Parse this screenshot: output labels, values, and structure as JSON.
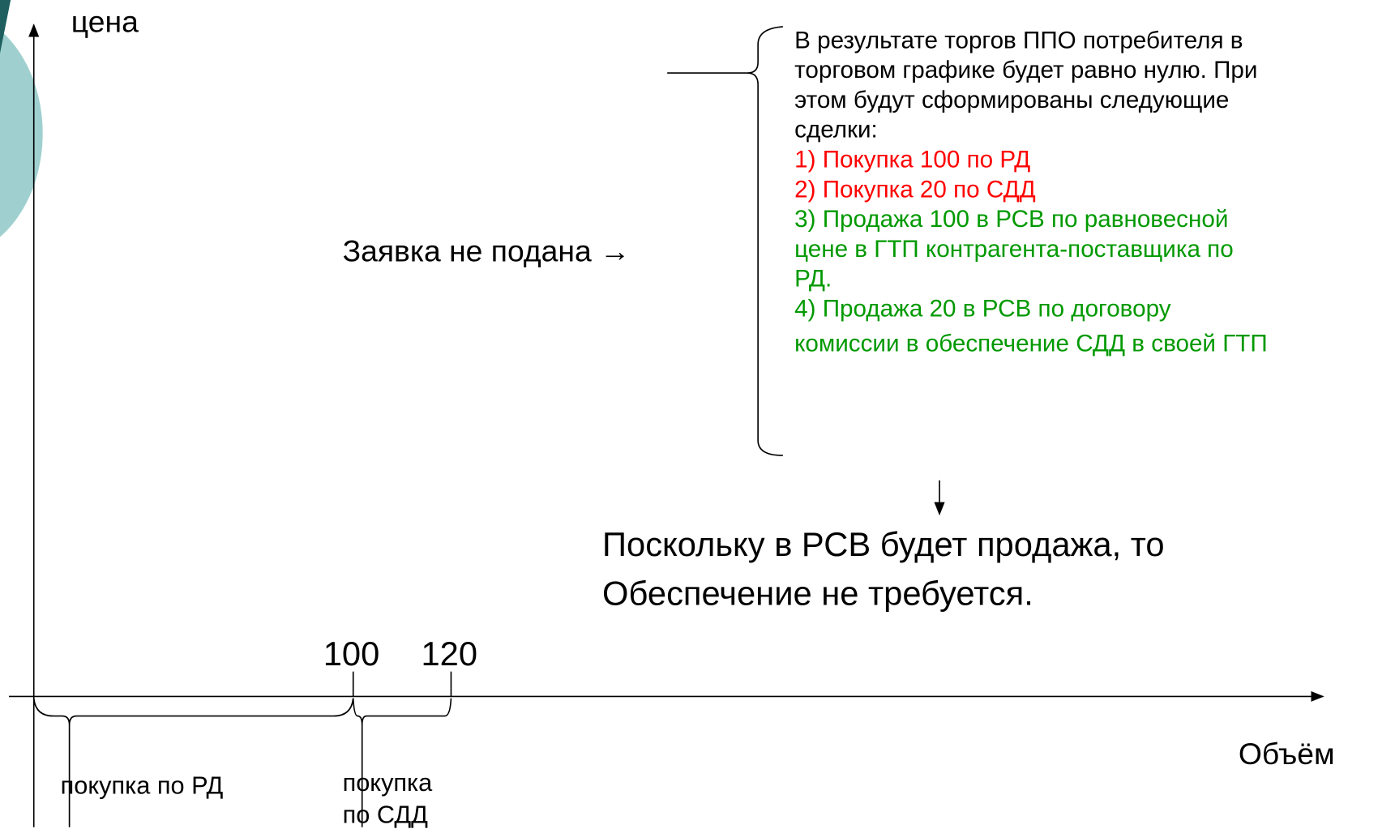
{
  "axes": {
    "y_label": "цена",
    "x_label": "Объём",
    "x_marks": [
      "100",
      "120"
    ]
  },
  "brackets": [
    {
      "label": "покупка по РД"
    },
    {
      "label_lines": [
        "покупка",
        "по СДД"
      ]
    }
  ],
  "left_note": "Заявка не подана →",
  "result": {
    "intro_lines": [
      "В результате торгов ППО потребителя в",
      "торговом графике будет равно нулю. При",
      "этом будут сформированы следующие",
      "сделки:"
    ],
    "items": [
      {
        "color": "#ff0000",
        "lines": [
          "1) Покупка 100 по РД"
        ]
      },
      {
        "color": "#ff0000",
        "lines": [
          "2) Покупка 20 по СДД"
        ]
      },
      {
        "color": "#009900",
        "lines": [
          "3) Продажа 100 в РСВ по равновесной",
          "цене в ГТП контрагента-поставщика по",
          "РД."
        ]
      },
      {
        "color": "#009900",
        "lines": [
          "4) Продажа 20 в РСВ по договору",
          "комиссии в обеспечение СДД в своей ГТП"
        ]
      }
    ]
  },
  "conclusion_lines": [
    "Поскольку в РСВ будет продажа, то",
    "Обеспечение не требуется."
  ]
}
